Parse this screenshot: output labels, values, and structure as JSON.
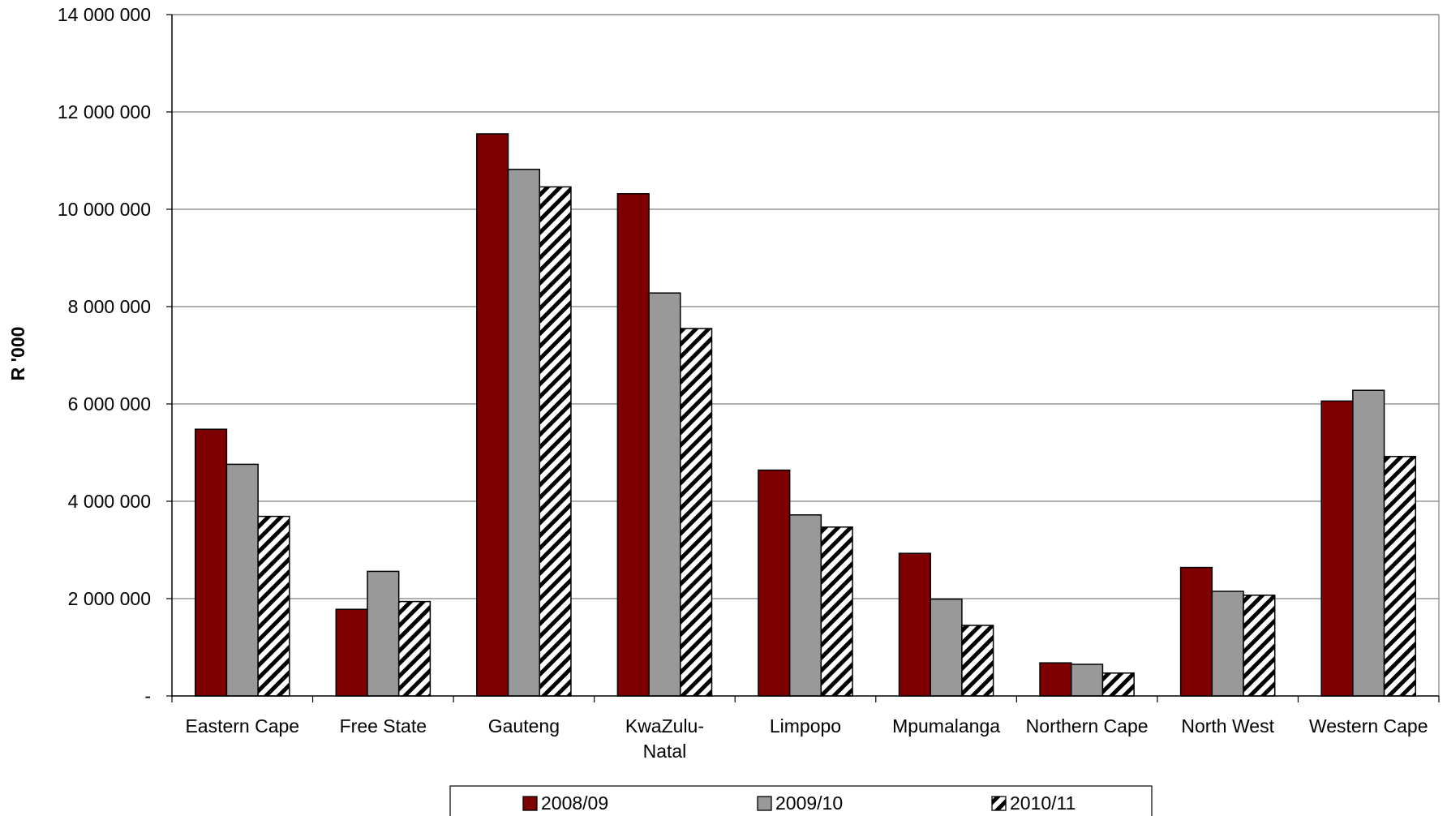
{
  "chart_data": {
    "type": "bar",
    "title": "",
    "xlabel": "",
    "ylabel": "R '000",
    "ylim": [
      0,
      14000000
    ],
    "yticks": [
      {
        "value": 0,
        "label": "-"
      },
      {
        "value": 2000000,
        "label": "2 000 000"
      },
      {
        "value": 4000000,
        "label": "4 000 000"
      },
      {
        "value": 6000000,
        "label": "6 000 000"
      },
      {
        "value": 8000000,
        "label": "8 000 000"
      },
      {
        "value": 10000000,
        "label": "10 000 000"
      },
      {
        "value": 12000000,
        "label": "12 000 000"
      },
      {
        "value": 14000000,
        "label": "14 000 000"
      }
    ],
    "categories": [
      [
        "Eastern Cape"
      ],
      [
        "Free State"
      ],
      [
        "Gauteng"
      ],
      [
        "KwaZulu-",
        "Natal"
      ],
      [
        "Limpopo"
      ],
      [
        "Mpumalanga"
      ],
      [
        "Northern Cape"
      ],
      [
        "North West"
      ],
      [
        "Western Cape"
      ]
    ],
    "series": [
      {
        "name": "2008/09",
        "color": "#7f0000",
        "pattern": "solid",
        "values": [
          5480000,
          1780000,
          11550000,
          10320000,
          4640000,
          2930000,
          680000,
          2640000,
          6060000
        ]
      },
      {
        "name": "2009/10",
        "color": "#999999",
        "pattern": "solid",
        "values": [
          4760000,
          2560000,
          10820000,
          8280000,
          3720000,
          1990000,
          650000,
          2150000,
          6280000
        ]
      },
      {
        "name": "2010/11",
        "color": "#ffffff",
        "pattern": "diagonal-hatch",
        "values": [
          3690000,
          1940000,
          10460000,
          7550000,
          3470000,
          1450000,
          470000,
          2070000,
          4920000
        ]
      }
    ],
    "grid": true,
    "legend_position": "bottom"
  }
}
